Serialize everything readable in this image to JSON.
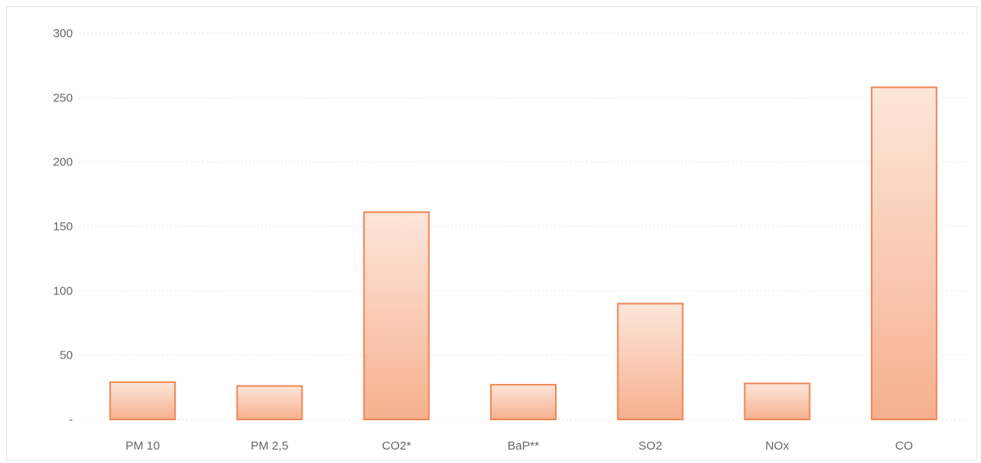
{
  "header": {
    "caption": ""
  },
  "chart_data": {
    "type": "bar",
    "categories": [
      "PM 10",
      "PM 2,5",
      "CO2*",
      "BaP**",
      "SO2",
      "NOx",
      "CO"
    ],
    "values": [
      29,
      26,
      161,
      27,
      90,
      28,
      258
    ],
    "ylim": [
      0,
      300
    ],
    "yticks": [
      0,
      50,
      100,
      150,
      200,
      250,
      300
    ],
    "ytick_labels": [
      "-",
      "50",
      "100",
      "150",
      "200",
      "250",
      "300"
    ],
    "grid": true,
    "colors": {
      "bar_fill_top": "#fde6da",
      "bar_fill_bottom": "#f6b08f",
      "bar_stroke": "#ee8855",
      "grid": "#dddddd"
    }
  }
}
